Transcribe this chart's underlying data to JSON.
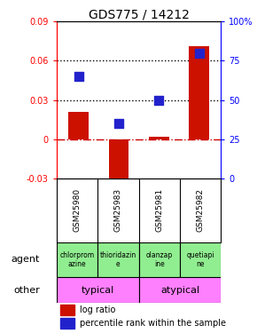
{
  "title": "GDS775 / 14212",
  "samples": [
    "GSM25980",
    "GSM25983",
    "GSM25981",
    "GSM25982"
  ],
  "log_ratio": [
    0.021,
    -0.034,
    0.002,
    0.071
  ],
  "percentile_rank": [
    65,
    35,
    50,
    80
  ],
  "ylim_left": [
    -0.03,
    0.09
  ],
  "ylim_right": [
    0,
    100
  ],
  "yticks_left": [
    -0.03,
    0.0,
    0.03,
    0.06,
    0.09
  ],
  "yticks_right": [
    0,
    25,
    50,
    75,
    100
  ],
  "ytick_labels_left": [
    "-0.03",
    "0",
    "0.03",
    "0.06",
    "0.09"
  ],
  "ytick_labels_right": [
    "0",
    "25",
    "50",
    "75",
    "100%"
  ],
  "hlines": [
    0.03,
    0.06
  ],
  "agent_labels": [
    "chlorprom\nazine",
    "thioridazin\ne",
    "olanzap\nine",
    "quetiapi\nne"
  ],
  "agent_color": "#90EE90",
  "typical_color": "#FF80FF",
  "typical_label": "typical",
  "atypical_label": "atypical",
  "bar_color": "#CC1100",
  "dot_color": "#2222CC",
  "bar_width": 0.5,
  "dot_size": 45,
  "agent_row_label": "agent",
  "other_row_label": "other",
  "legend_bar": "log ratio",
  "legend_dot": "percentile rank within the sample",
  "background_color": "#ffffff",
  "hline_color": "#000000",
  "zero_line_color": "#CC0000",
  "sample_bg_color": "#C8C8C8"
}
